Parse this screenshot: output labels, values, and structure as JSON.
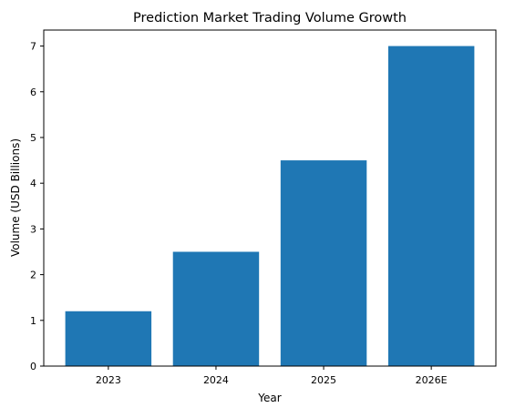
{
  "chart_data": {
    "type": "bar",
    "title": "Prediction Market Trading Volume Growth",
    "xlabel": "Year",
    "ylabel": "Volume (USD Billions)",
    "categories": [
      "2023",
      "2024",
      "2025",
      "2026E"
    ],
    "values": [
      1.2,
      2.5,
      4.5,
      7.0
    ],
    "ylim": [
      0,
      7.35
    ],
    "yticks": [
      0,
      1,
      2,
      3,
      4,
      5,
      6,
      7
    ],
    "grid": false,
    "legend": "none",
    "bar_color": "#1f77b4"
  }
}
